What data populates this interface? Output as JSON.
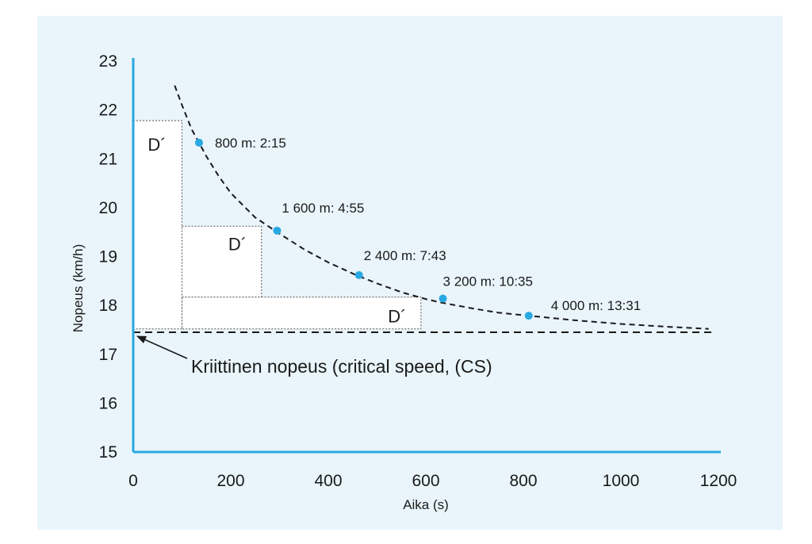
{
  "chart_data": {
    "type": "line",
    "title": "",
    "xlabel": "Aika (s)",
    "ylabel": "Nopeus (km/h)",
    "xlim": [
      0,
      1200
    ],
    "ylim": [
      15,
      23
    ],
    "xticks": [
      0,
      200,
      400,
      600,
      800,
      1000,
      1200
    ],
    "xtick_labels": [
      "0",
      "200",
      "400",
      "600",
      "800",
      "1000",
      "1200"
    ],
    "yticks": [
      15,
      16,
      17,
      18,
      19,
      20,
      21,
      22,
      23
    ],
    "ytick_labels": [
      "15",
      "16",
      "17",
      "18",
      "19",
      "20",
      "21",
      "22",
      "23"
    ],
    "grid": false,
    "critical_speed": 17.45,
    "series": [
      {
        "style": "dashed-curve",
        "x": [
          85,
          100,
          120,
          135,
          150,
          175,
          200,
          250,
          295,
          350,
          400,
          455,
          500,
          550,
          600,
          630,
          700,
          750,
          811,
          900,
          1000,
          1100,
          1180
        ],
        "y": [
          22.5,
          22.1,
          21.6,
          21.33,
          21.05,
          20.65,
          20.3,
          19.8,
          19.5,
          19.15,
          18.88,
          18.63,
          18.45,
          18.27,
          18.13,
          18.06,
          17.93,
          17.85,
          17.79,
          17.7,
          17.62,
          17.56,
          17.52
        ]
      }
    ],
    "points": [
      {
        "x": 135,
        "y": 21.33,
        "label": "800 m: 2:15"
      },
      {
        "x": 295,
        "y": 19.53,
        "label": "1 600 m: 4:55"
      },
      {
        "x": 463,
        "y": 18.62,
        "label": "2 400 m: 7:43"
      },
      {
        "x": 635,
        "y": 18.14,
        "label": "3 200 m: 10:35"
      },
      {
        "x": 811,
        "y": 17.79,
        "label": "4 000 m: 13:31"
      }
    ],
    "dprime_boxes": [
      {
        "x0": 0,
        "x1": 100,
        "y0": 17.52,
        "y1": 21.78,
        "label": "D´"
      },
      {
        "x0": 100,
        "x1": 263,
        "y0": 18.17,
        "y1": 19.62,
        "label": "D´"
      },
      {
        "x0": 100,
        "x1": 590,
        "y0": 17.52,
        "y1": 18.17,
        "label": "D´"
      }
    ],
    "annotation": "Kriittinen nopeus (critical speed, (CS)",
    "colors": {
      "axis": "#29a9e1",
      "points": "#29a9e1",
      "curve": "#1a1a1a",
      "background": "#e9f4fb"
    }
  }
}
